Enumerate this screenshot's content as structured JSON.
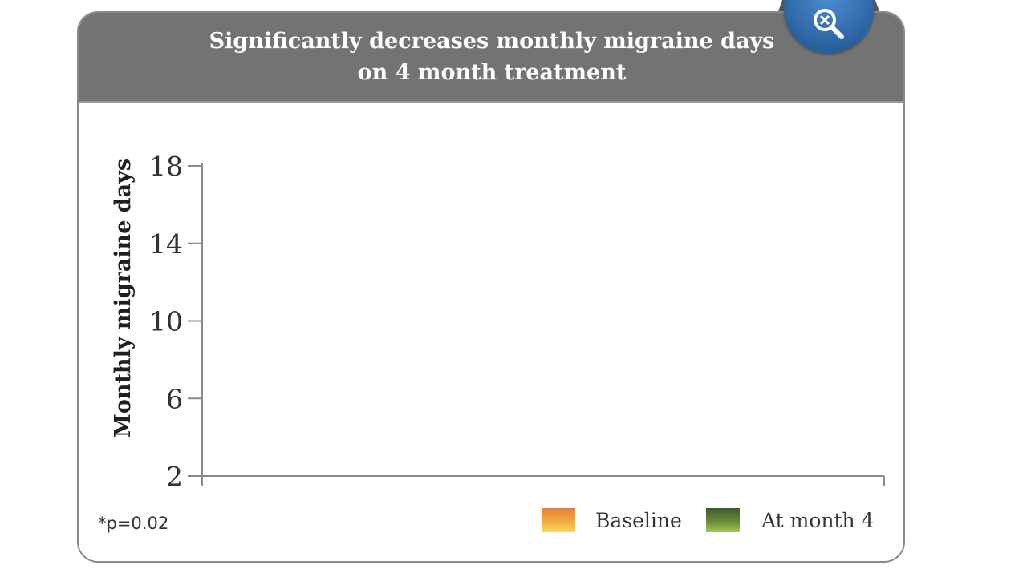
{
  "chart_data": {
    "type": "bar",
    "title": "Significantly decreases monthly migraine days on 4 month treatment",
    "ylabel": "Monthly migraine days",
    "xlabel": "",
    "ylim": [
      2,
      18
    ],
    "yticks": [
      2,
      6,
      10,
      14,
      18
    ],
    "categories": [],
    "series": [
      {
        "name": "Baseline",
        "values": []
      },
      {
        "name": "At month 4",
        "values": []
      }
    ],
    "legend": "bottom-right",
    "grid": false
  },
  "footnote": "*p=0.02",
  "colors": {
    "header": "#737373",
    "baseline": "#f0b040",
    "month4": "#6d8f3a",
    "zoom_button": "#2f6aa8"
  },
  "icons": {
    "zoom": "zoom-out-magnifier-icon"
  }
}
